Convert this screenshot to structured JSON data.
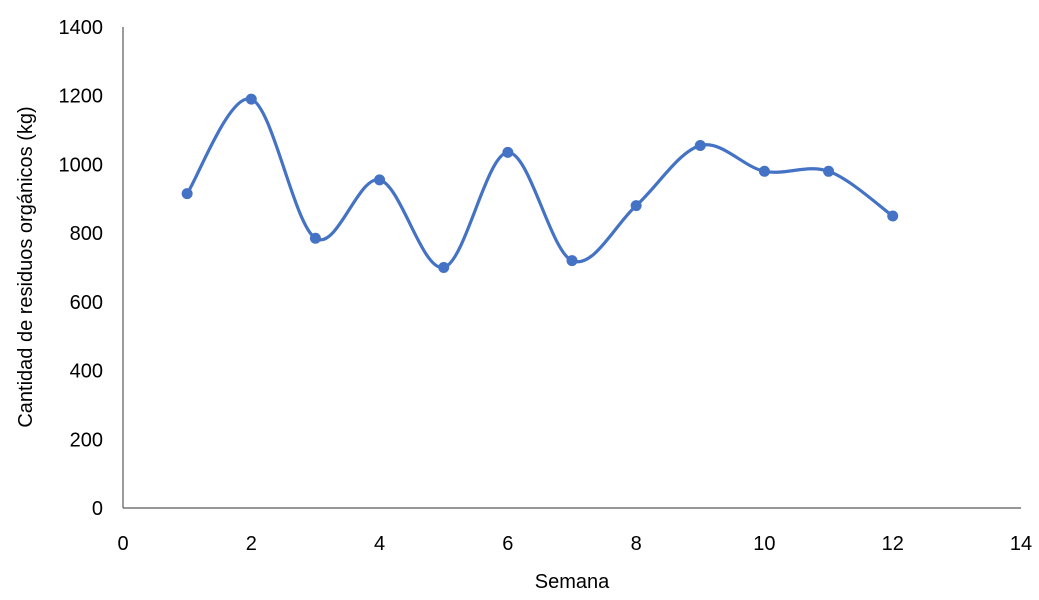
{
  "chart_data": {
    "type": "scatter",
    "title": "",
    "xlabel": "Semana",
    "ylabel": "Cantidad de residuos orgánicos (kg)",
    "xlim": [
      0,
      14
    ],
    "ylim": [
      0,
      1400
    ],
    "x_ticks": [
      "0",
      "2",
      "4",
      "6",
      "8",
      "10",
      "12",
      "14"
    ],
    "y_ticks": [
      "0",
      "200",
      "400",
      "600",
      "800",
      "1000",
      "1200",
      "1400"
    ],
    "grid": false,
    "legend": "none",
    "smooth_line": true,
    "series": [
      {
        "color": "#4472C4",
        "x": [
          1,
          2,
          3,
          4,
          5,
          6,
          7,
          8,
          9,
          10,
          11,
          12
        ],
        "y": [
          915,
          1190,
          785,
          955,
          700,
          1035,
          720,
          880,
          1055,
          980,
          980,
          850
        ]
      }
    ]
  }
}
